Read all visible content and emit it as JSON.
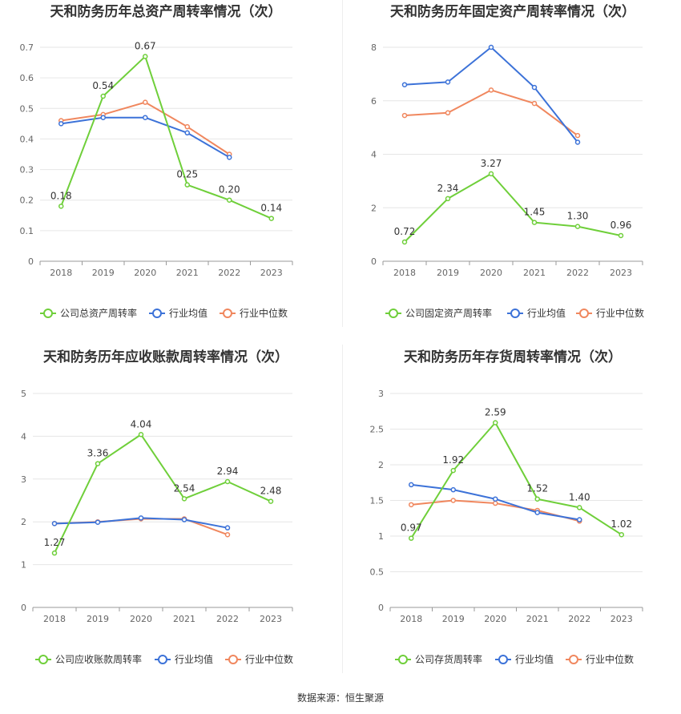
{
  "colors": {
    "company": "#6fcf3a",
    "avg": "#3c72d8",
    "median": "#f0875e",
    "grid": "#e6e6e6",
    "axis": "#666666",
    "title": "#333333",
    "label": "#333333"
  },
  "footer": "数据来源：恒生聚源",
  "chart_data": [
    {
      "type": "line",
      "title": "天和防务历年总资产周转率情况（次）",
      "categories": [
        "2018",
        "2019",
        "2020",
        "2021",
        "2022",
        "2023"
      ],
      "ylim": [
        0,
        0.7
      ],
      "yticks": [
        "0",
        "0.1",
        "0.2",
        "0.3",
        "0.4",
        "0.5",
        "0.6",
        "0.7"
      ],
      "series": [
        {
          "name": "公司总资产周转率",
          "role": "company",
          "values": [
            0.18,
            0.54,
            0.67,
            0.25,
            0.2,
            0.14
          ],
          "labels": [
            "0.18",
            "0.54",
            "0.67",
            "0.25",
            "0.20",
            "0.14"
          ]
        },
        {
          "name": "行业均值",
          "role": "avg",
          "values": [
            0.45,
            0.47,
            0.47,
            0.42,
            0.34,
            null
          ]
        },
        {
          "name": "行业中位数",
          "role": "median",
          "values": [
            0.46,
            0.48,
            0.52,
            0.44,
            0.35,
            null
          ]
        }
      ],
      "grid": true,
      "legend": "bottom"
    },
    {
      "type": "line",
      "title": "天和防务历年固定资产周转率情况（次）",
      "categories": [
        "2018",
        "2019",
        "2020",
        "2021",
        "2022",
        "2023"
      ],
      "ylim": [
        0,
        8
      ],
      "yticks": [
        "0",
        "2",
        "4",
        "6",
        "8"
      ],
      "series": [
        {
          "name": "公司固定资产周转率",
          "role": "company",
          "values": [
            0.72,
            2.34,
            3.27,
            1.45,
            1.3,
            0.96
          ],
          "labels": [
            "0.72",
            "2.34",
            "3.27",
            "1.45",
            "1.30",
            "0.96"
          ]
        },
        {
          "name": "行业均值",
          "role": "avg",
          "values": [
            6.6,
            6.7,
            8.0,
            6.5,
            4.45,
            null
          ]
        },
        {
          "name": "行业中位数",
          "role": "median",
          "values": [
            5.45,
            5.55,
            6.4,
            5.9,
            4.7,
            null
          ]
        }
      ],
      "grid": true,
      "legend": "bottom"
    },
    {
      "type": "line",
      "title": "天和防务历年应收账款周转率情况（次）",
      "categories": [
        "2018",
        "2019",
        "2020",
        "2021",
        "2022",
        "2023"
      ],
      "ylim": [
        0,
        5
      ],
      "yticks": [
        "0",
        "1",
        "2",
        "3",
        "4",
        "5"
      ],
      "series": [
        {
          "name": "公司应收账款周转率",
          "role": "company",
          "values": [
            1.27,
            3.36,
            4.04,
            2.54,
            2.94,
            2.48
          ],
          "labels": [
            "1.27",
            "3.36",
            "4.04",
            "2.54",
            "2.94",
            "2.48"
          ]
        },
        {
          "name": "行业均值",
          "role": "avg",
          "values": [
            1.96,
            1.99,
            2.09,
            2.05,
            1.86,
            null
          ]
        },
        {
          "name": "行业中位数",
          "role": "median",
          "values": [
            1.96,
            2.0,
            2.07,
            2.07,
            1.7,
            null
          ]
        }
      ],
      "grid": true,
      "legend": "bottom"
    },
    {
      "type": "line",
      "title": "天和防务历年存货周转率情况（次）",
      "categories": [
        "2018",
        "2019",
        "2020",
        "2021",
        "2022",
        "2023"
      ],
      "ylim": [
        0,
        3
      ],
      "yticks": [
        "0",
        "0.5",
        "1",
        "1.5",
        "2",
        "2.5",
        "3"
      ],
      "series": [
        {
          "name": "公司存货周转率",
          "role": "company",
          "values": [
            0.97,
            1.92,
            2.59,
            1.52,
            1.4,
            1.02
          ],
          "labels": [
            "0.97",
            "1.92",
            "2.59",
            "1.52",
            "1.40",
            "1.02"
          ]
        },
        {
          "name": "行业均值",
          "role": "avg",
          "values": [
            1.72,
            1.65,
            1.52,
            1.33,
            1.23,
            null
          ]
        },
        {
          "name": "行业中位数",
          "role": "median",
          "values": [
            1.44,
            1.5,
            1.46,
            1.36,
            1.21,
            null
          ]
        }
      ],
      "grid": true,
      "legend": "bottom"
    }
  ]
}
